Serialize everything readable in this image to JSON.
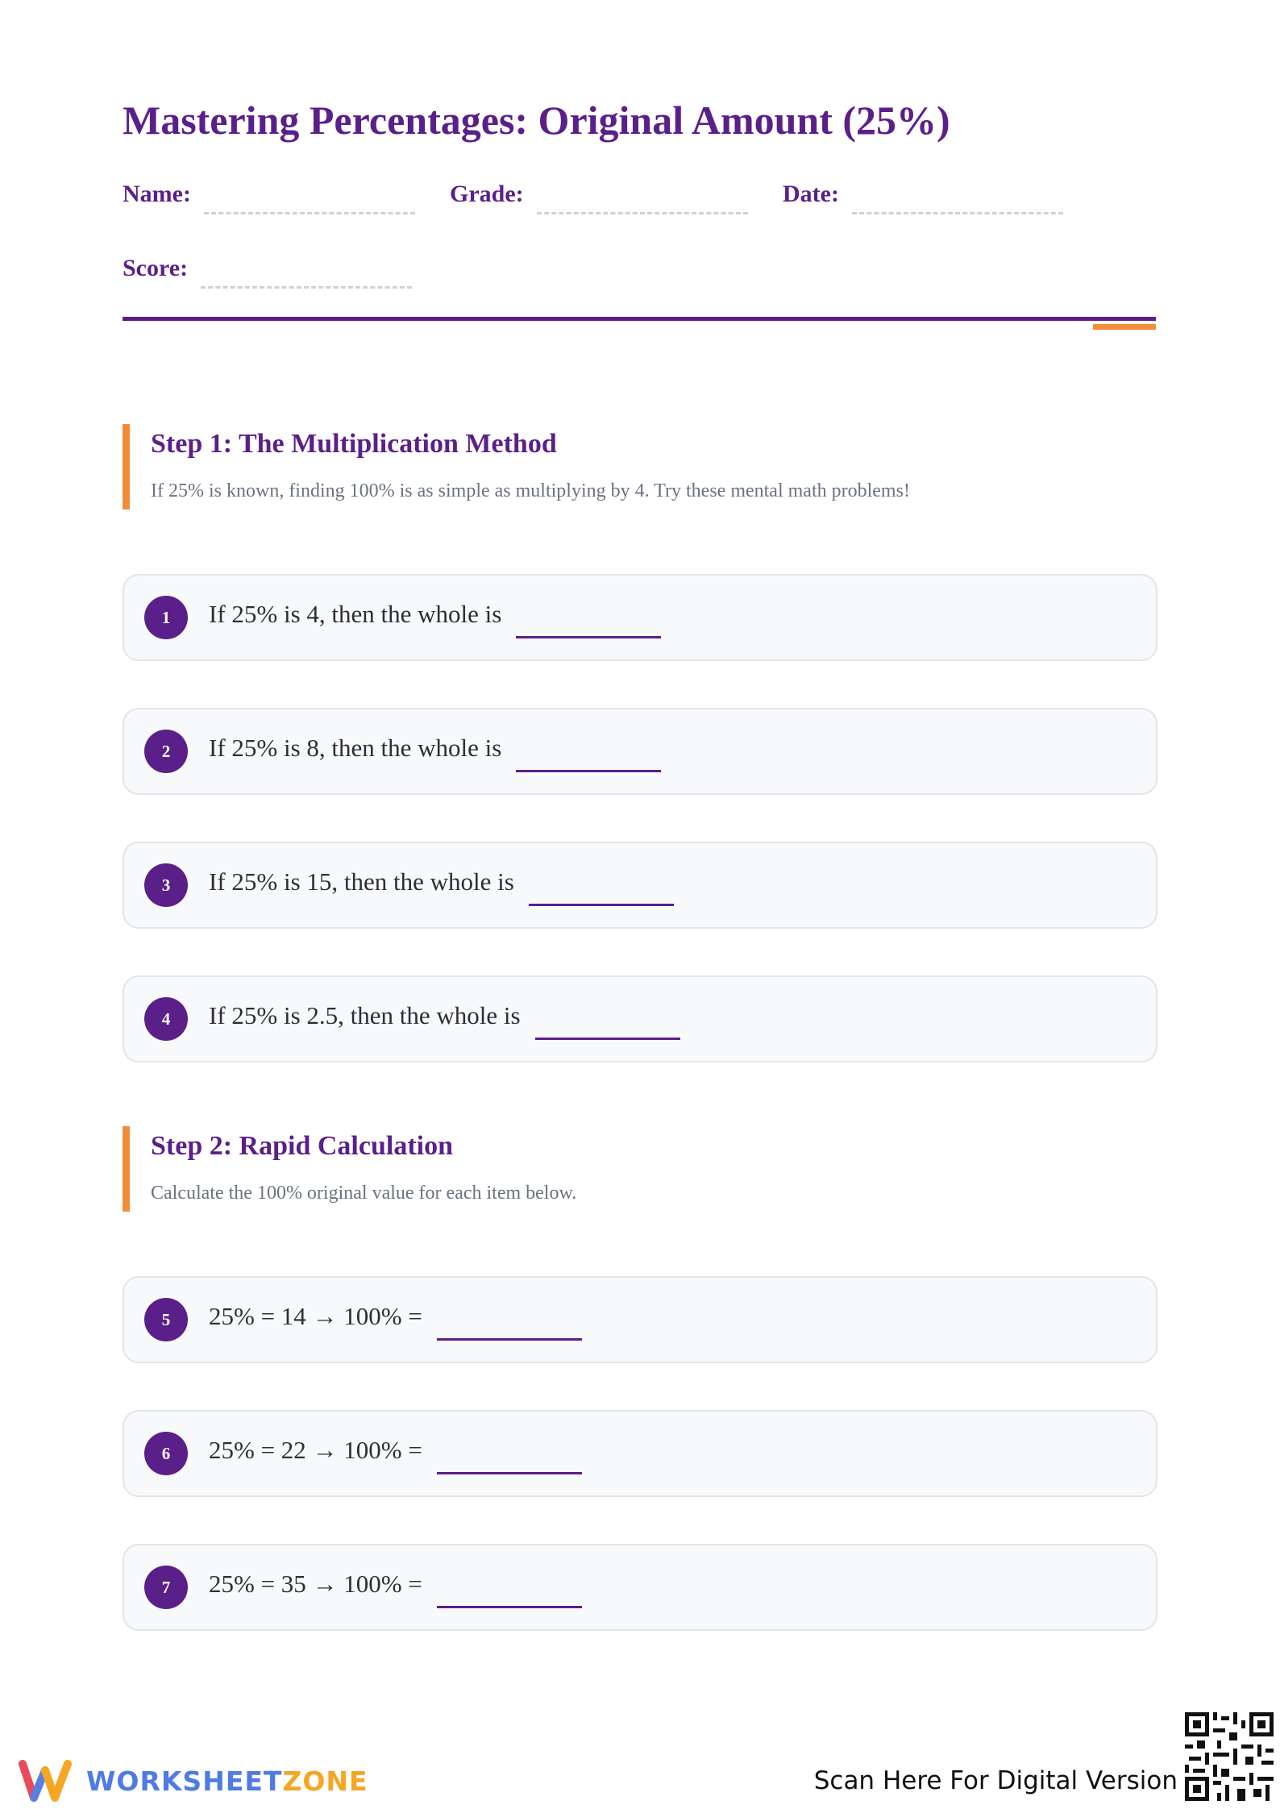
{
  "header": {
    "title": "Mastering Percentages: Original Amount (25%)",
    "fields": [
      "Name:",
      "Grade:",
      "Date:",
      "Score:"
    ]
  },
  "sections": [
    {
      "title": "Step 1: The Multiplication Method",
      "description": "If 25% is known, finding 100% is as simple as multiplying by 4. Try these mental math problems!",
      "problems": [
        {
          "number": "1",
          "text": "If 25% is 4, then the whole is"
        },
        {
          "number": "2",
          "text": "If 25% is 8, then the whole is"
        },
        {
          "number": "3",
          "text": "If 25% is 15, then the whole is"
        },
        {
          "number": "4",
          "text": "If 25% is 2.5, then the whole is"
        }
      ]
    },
    {
      "title": "Step 2: Rapid Calculation",
      "description": "Calculate the 100% original value for each item below.",
      "problems": [
        {
          "number": "5",
          "text": "25% = 14 → 100% ="
        },
        {
          "number": "6",
          "text": "25% = 22 → 100% ="
        },
        {
          "number": "7",
          "text": "25% = 35 → 100% ="
        }
      ]
    }
  ],
  "footer": {
    "brand_a": "WORKSHEET",
    "brand_b": "ZONE",
    "scan": "Scan Here For Digital Version"
  }
}
